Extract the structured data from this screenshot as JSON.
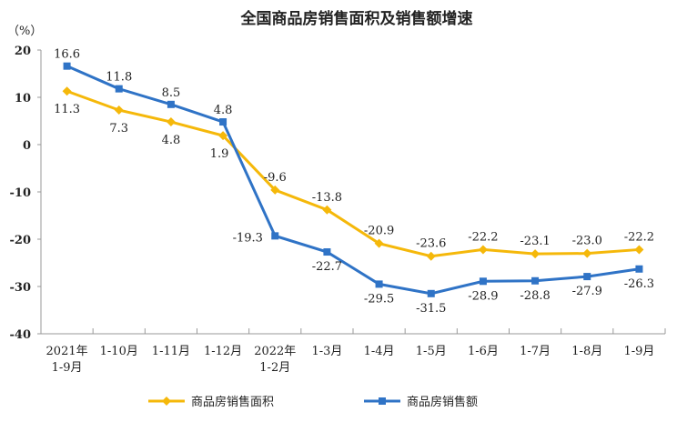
{
  "chart_data": {
    "type": "line",
    "title": "全国商品房销售面积及销售额增速",
    "ylabel": "（%）",
    "xlabel": "",
    "ylim": [
      -40,
      20
    ],
    "yticks": [
      20,
      10,
      0,
      -10,
      -20,
      -30,
      -40
    ],
    "grid": false,
    "legend_position": "bottom",
    "categories": [
      "2021年\n1-9月",
      "1-10月",
      "1-11月",
      "1-12月",
      "2022年\n1-2月",
      "1-3月",
      "1-4月",
      "1-5月",
      "1-6月",
      "1-7月",
      "1-8月",
      "1-9月"
    ],
    "series": [
      {
        "name": "商品房销售面积",
        "color": "#F5B80A",
        "marker": "diamond",
        "values": [
          11.3,
          7.3,
          4.8,
          1.9,
          -9.6,
          -13.8,
          -20.9,
          -23.6,
          -22.2,
          -23.1,
          -23.0,
          -22.2
        ]
      },
      {
        "name": "商品房销售额",
        "color": "#2F73C6",
        "marker": "square",
        "values": [
          16.6,
          11.8,
          8.5,
          4.8,
          -19.3,
          -22.7,
          -29.5,
          -31.5,
          -28.9,
          -28.8,
          -27.9,
          -26.3
        ]
      }
    ]
  }
}
